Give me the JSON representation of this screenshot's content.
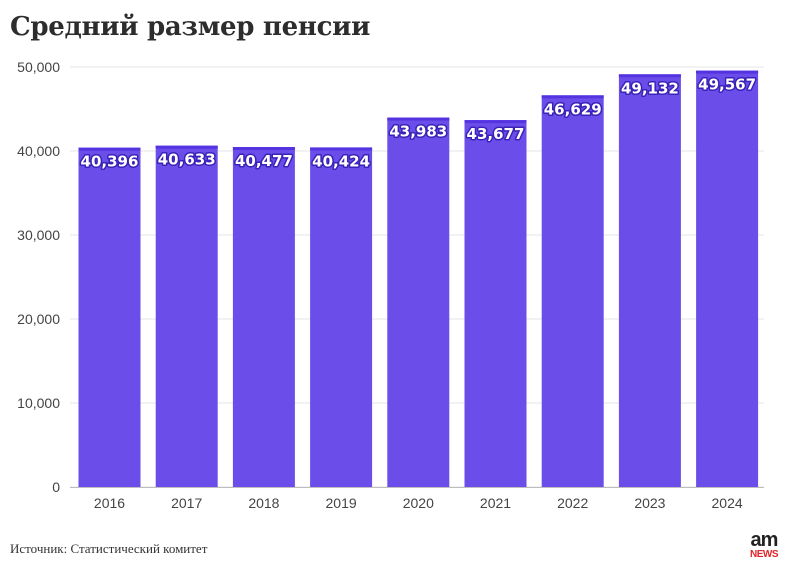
{
  "title": "Средний размер пенсии",
  "source": "Источник: Статистический комитет",
  "logo": {
    "top": "am",
    "bottom": "NEWS"
  },
  "colors": {
    "bar": "#6b4eea",
    "bar_top": "#5433e0",
    "grid": "#e4e4e4",
    "axis_text": "#444444",
    "label_text": "#ffffff"
  },
  "chart_data": {
    "type": "bar",
    "categories": [
      "2016",
      "2017",
      "2018",
      "2019",
      "2020",
      "2021",
      "2022",
      "2023",
      "2024"
    ],
    "values": [
      40396,
      40633,
      40477,
      40424,
      43983,
      43677,
      46629,
      49132,
      49567
    ],
    "value_labels": [
      "40,396",
      "40,633",
      "40,477",
      "40,424",
      "43,983",
      "43,677",
      "46,629",
      "49,132",
      "49,567"
    ],
    "title": "Средний размер пенсии",
    "xlabel": "",
    "ylabel": "",
    "ylim": [
      0,
      50000
    ],
    "yticks": [
      0,
      10000,
      20000,
      30000,
      40000,
      50000
    ],
    "ytick_labels": [
      "0",
      "10,000",
      "20,000",
      "30,000",
      "40,000",
      "50,000"
    ],
    "grid": true,
    "legend": "none"
  }
}
